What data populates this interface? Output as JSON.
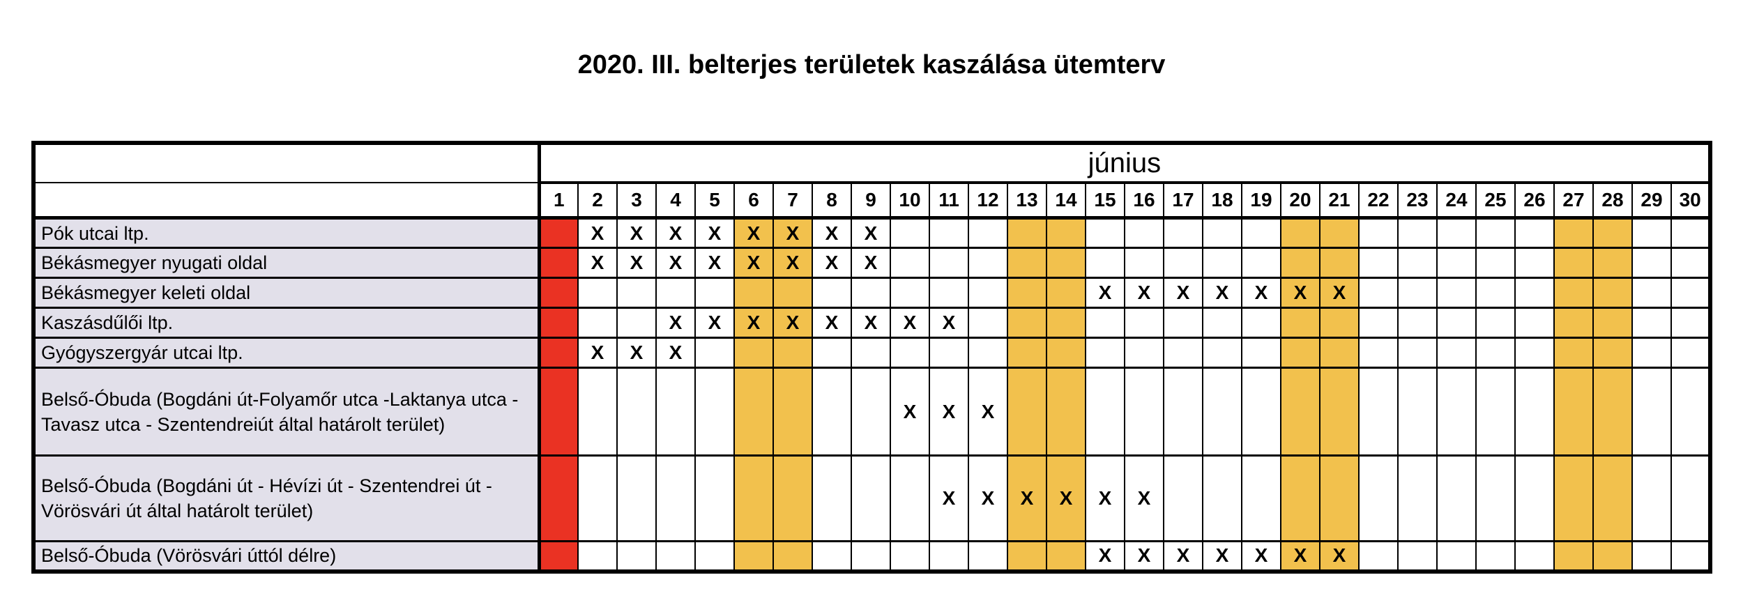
{
  "title": "2020. III. belterjes területek kaszálása ütemterv",
  "table": {
    "month_label": "június",
    "days": [
      1,
      2,
      3,
      4,
      5,
      6,
      7,
      8,
      9,
      10,
      11,
      12,
      13,
      14,
      15,
      16,
      17,
      18,
      19,
      20,
      21,
      22,
      23,
      24,
      25,
      26,
      27,
      28,
      29,
      30
    ],
    "mark": "X",
    "special_columns": {
      "holiday_red": [
        1
      ],
      "weekend_orange": [
        6,
        7,
        13,
        14,
        20,
        21,
        27,
        28
      ]
    },
    "colors": {
      "holiday": "#ea3223",
      "weekend": "#f2c14d",
      "row_label_bg": "#e2e0ea",
      "border": "#000000"
    },
    "rows": [
      {
        "label": "Pók utcai ltp.",
        "marked_days": [
          2,
          3,
          4,
          5,
          6,
          7,
          8,
          9
        ]
      },
      {
        "label": "Békásmegyer nyugati oldal",
        "marked_days": [
          2,
          3,
          4,
          5,
          6,
          7,
          8,
          9
        ]
      },
      {
        "label": "Békásmegyer keleti oldal",
        "marked_days": [
          15,
          16,
          17,
          18,
          19,
          20,
          21
        ]
      },
      {
        "label": "Kaszásdűlői ltp.",
        "marked_days": [
          4,
          5,
          6,
          7,
          8,
          9,
          10,
          11
        ]
      },
      {
        "label": "Gyógyszergyár utcai ltp.",
        "marked_days": [
          2,
          3,
          4
        ]
      },
      {
        "label": "Belső-Óbuda (Bogdáni út-Folyamőr utca -Laktanya utca -Tavasz utca - Szentendreiút által határolt terület)",
        "marked_days": [
          10,
          11,
          12
        ]
      },
      {
        "label": "Belső-Óbuda (Bogdáni út - Hévízi út - Szentendrei út - Vörösvári út által határolt terület)",
        "marked_days": [
          11,
          12,
          13,
          14,
          15,
          16
        ]
      },
      {
        "label": "Belső-Óbuda (Vörösvári úttól délre)",
        "marked_days": [
          15,
          16,
          17,
          18,
          19,
          20,
          21
        ]
      }
    ]
  }
}
